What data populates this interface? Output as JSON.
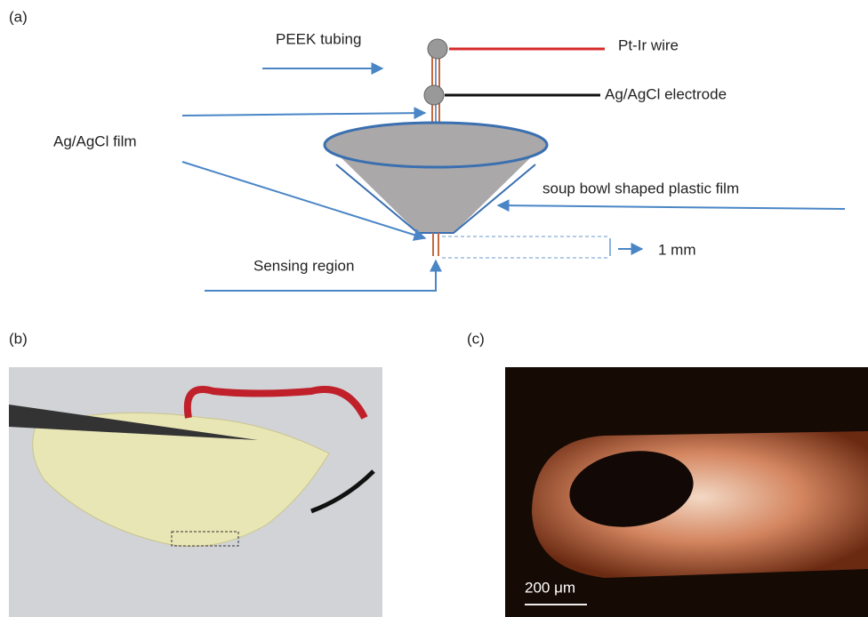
{
  "panels": [
    {
      "label": "(a)",
      "annotations": {
        "peek": "PEEK tubing",
        "ptir": "Pt-Ir wire",
        "electrode": "Ag/AgCl electrode",
        "film": "Ag/AgCl film",
        "bowl": "soup bowl shaped plastic film",
        "sensing": "Sensing region",
        "scale": "1 mm"
      }
    },
    {
      "label": "(b)"
    },
    {
      "label": "(c)",
      "scale_bar": "200 μm"
    }
  ]
}
